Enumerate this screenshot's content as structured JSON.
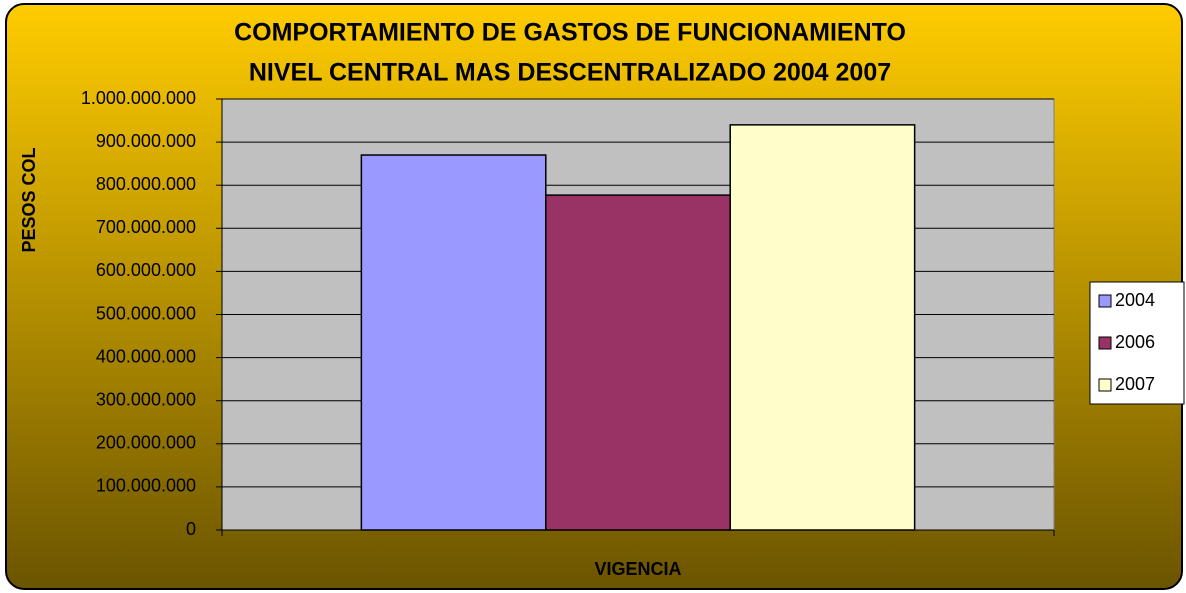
{
  "chart_data": {
    "type": "bar",
    "title": [
      "COMPORTAMIENTO DE GASTOS DE FUNCIONAMIENTO",
      "NIVEL CENTRAL MAS DESCENTRALIZADO 2004 2007"
    ],
    "x_label": "VIGENCIA",
    "y_label": "PESOS COL",
    "categories": [
      null
    ],
    "series": [
      {
        "name": "2004",
        "color": "#9999ff",
        "values": [
          870000000
        ]
      },
      {
        "name": "2006",
        "color": "#993366",
        "values": [
          777000000
        ]
      },
      {
        "name": "2007",
        "color": "#ffffcc",
        "values": [
          940000000
        ]
      }
    ],
    "ylim": [
      0,
      1000000000
    ],
    "yticks": [
      0,
      {
        "value": 100000000,
        "label": "100.000.000"
      },
      {
        "value": 200000000,
        "label": "200.000.000"
      },
      {
        "value": 300000000,
        "label": "300.000.000"
      },
      {
        "value": 400000000,
        "label": "400.000.000"
      },
      {
        "value": 500000000,
        "label": "500.000.000"
      },
      {
        "value": 600000000,
        "label": "600.000.000"
      },
      {
        "value": 700000000,
        "label": "700.000.000"
      },
      {
        "value": 800000000,
        "label": "800.000.000"
      },
      {
        "value": 900000000,
        "label": "900.000.000"
      },
      {
        "value": 1000000000,
        "label": "1.000.000.000"
      }
    ],
    "grid": true,
    "legend": "right"
  }
}
